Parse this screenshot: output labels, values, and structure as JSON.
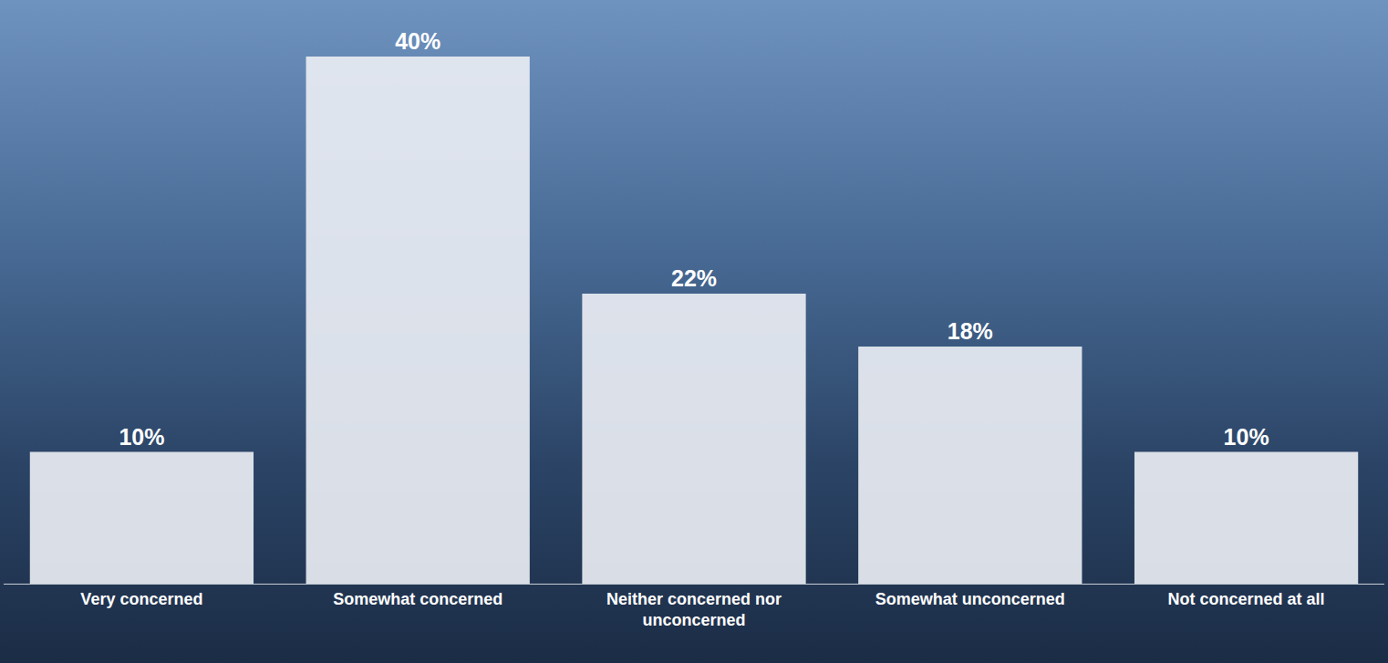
{
  "chart_data": {
    "type": "bar",
    "categories": [
      "Very concerned",
      "Somewhat concerned",
      "Neither concerned nor unconcerned",
      "Somewhat unconcerned",
      "Not concerned at all"
    ],
    "values": [
      10,
      40,
      22,
      18,
      10
    ],
    "value_labels": [
      "10%",
      "40%",
      "22%",
      "18%",
      "10%"
    ],
    "color": "#e9edf3",
    "ylim": [
      0,
      40
    ],
    "grid": false,
    "data_labels": true,
    "tick_labels": "x"
  }
}
